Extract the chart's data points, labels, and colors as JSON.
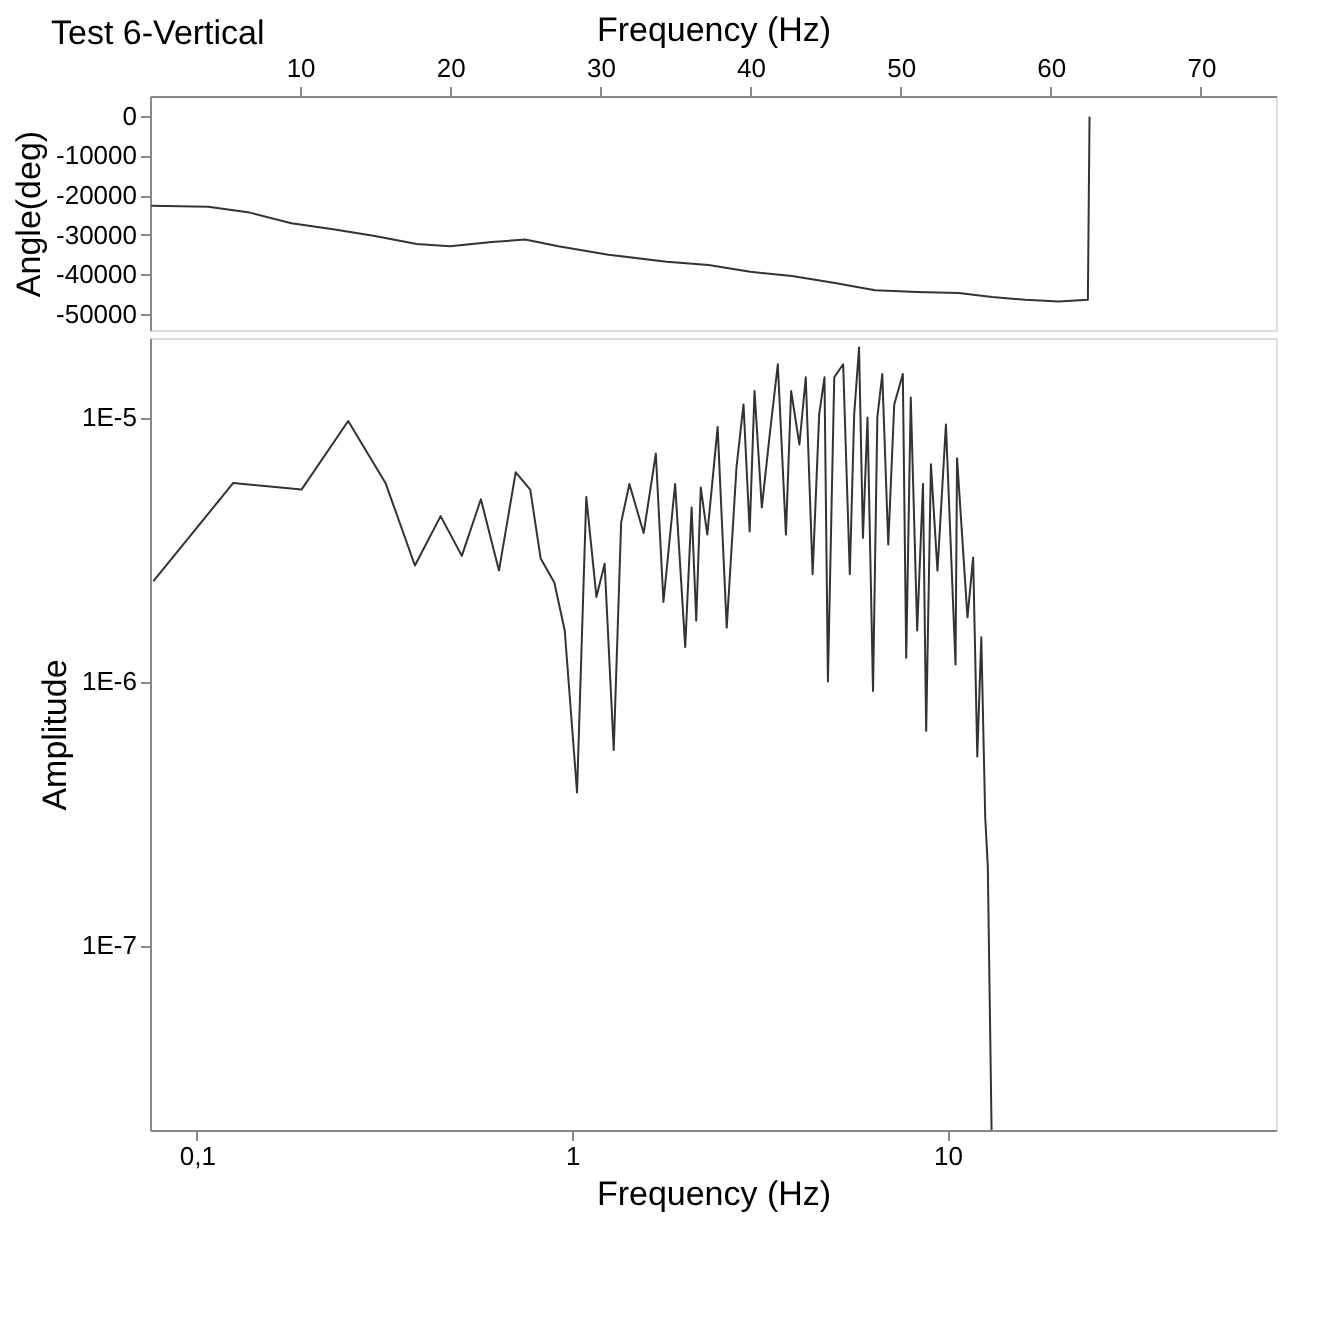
{
  "chart_data": [
    {
      "type": "line",
      "title": "Test 6-Vertical",
      "xlabel": "Frequency (Hz)",
      "ylabel": "Angle(deg)",
      "xlim": [
        0,
        75
      ],
      "xticks": [
        10,
        20,
        30,
        40,
        50,
        60,
        70
      ],
      "ylim": [
        -54000,
        5000
      ],
      "yticks": [
        0,
        -10000,
        -20000,
        -30000,
        -40000,
        -50000
      ],
      "grid": false,
      "series": [
        {
          "color": "#333333",
          "x": [
            0.09,
            3.87,
            6.64,
            9.42,
            12.2,
            14.98,
            17.76,
            19.98,
            22.76,
            24.98,
            27.2,
            30.53,
            34.42,
            37.2,
            39.98,
            42.76,
            45.53,
            48.3,
            51.1,
            53.87,
            56.09,
            58.3,
            60.53,
            62.47,
            62.58
          ],
          "values": [
            -22700,
            -22900,
            -24400,
            -27100,
            -28600,
            -30300,
            -32300,
            -32900,
            -31800,
            -31200,
            -32900,
            -35000,
            -36800,
            -37600,
            -39300,
            -40400,
            -42100,
            -44000,
            -44400,
            -44700,
            -45700,
            -46400,
            -46800,
            -46400,
            -200
          ]
        }
      ]
    },
    {
      "type": "line",
      "xlabel": "Frequency (Hz)",
      "ylabel": "Amplitude",
      "log": "xy",
      "xlim": [
        0.075,
        75
      ],
      "ylim": [
        2e-08,
        2e-05
      ],
      "xticks": [
        {
          "value": 0.1,
          "label": "0,1"
        },
        1,
        10
      ],
      "yticks": [
        {
          "value": 1e-07,
          "label": "1E-7"
        },
        {
          "value": 1e-06,
          "label": "1E-6"
        },
        {
          "value": 1e-05,
          "label": "1E-5"
        }
      ],
      "grid": false,
      "series": [
        {
          "color": "#333333",
          "x": [
            0.0766,
            0.125,
            0.19,
            0.253,
            0.318,
            0.381,
            0.446,
            0.508,
            0.571,
            0.638,
            0.707,
            0.773,
            0.824,
            0.896,
            0.955,
            1.03,
            1.09,
            1.16,
            1.22,
            1.29,
            1.35,
            1.42,
            1.55,
            1.67,
            1.75,
            1.88,
            2.0,
            2.08,
            2.14,
            2.2,
            2.29,
            2.44,
            2.58,
            2.74,
            2.86,
            2.97,
            3.06,
            3.2,
            3.36,
            3.53,
            3.71,
            3.83,
            4.03,
            4.19,
            4.37,
            4.55,
            4.7,
            4.8,
            4.99,
            5.27,
            5.49,
            5.64,
            5.81,
            5.95,
            6.12,
            6.33,
            6.5,
            6.7,
            6.95,
            7.21,
            7.6,
            7.76,
            7.98,
            8.3,
            8.6,
            8.77,
            9.03,
            9.4,
            9.9,
            10.5,
            10.6,
            11.3,
            11.7,
            12.0,
            12.3,
            12.6,
            12.8,
            13.1
          ],
          "values": [
            2.4e-06,
            5.65e-06,
            5.33e-06,
            9.7e-06,
            5.65e-06,
            2.75e-06,
            4.23e-06,
            2.99e-06,
            4.9e-06,
            2.63e-06,
            6.2e-06,
            5.33e-06,
            2.92e-06,
            2.37e-06,
            1.56e-06,
            3.8e-07,
            5e-06,
            2.09e-06,
            2.79e-06,
            5.5e-07,
            4e-06,
            5.6e-06,
            3.65e-06,
            7.3e-06,
            2e-06,
            5.6e-06,
            1.35e-06,
            4.56e-06,
            1.7e-06,
            5.43e-06,
            3.6e-06,
            9.2e-06,
            1.6e-06,
            6.5e-06,
            1.12e-05,
            3.7e-06,
            1.26e-05,
            4.56e-06,
            8.65e-06,
            1.59e-05,
            3.6e-06,
            1.26e-05,
            7.9e-06,
            1.42e-05,
            2.55e-06,
            1.03e-05,
            1.42e-05,
            1e-06,
            1.42e-05,
            1.59e-05,
            2.55e-06,
            1.03e-05,
            1.84e-05,
            3.5e-06,
            1e-05,
            9.2e-07,
            1e-05,
            1.46e-05,
            3.3e-06,
            1.12e-05,
            1.46e-05,
            1.23e-06,
            1.19e-05,
            1.56e-06,
            5.6e-06,
            6.5e-07,
            6.65e-06,
            2.63e-06,
            9.4e-06,
            1.16e-06,
            7e-06,
            1.75e-06,
            2.95e-06,
            5.2e-07,
            1.47e-06,
            3.05e-07,
            2e-07,
            2e-08
          ]
        }
      ]
    }
  ]
}
